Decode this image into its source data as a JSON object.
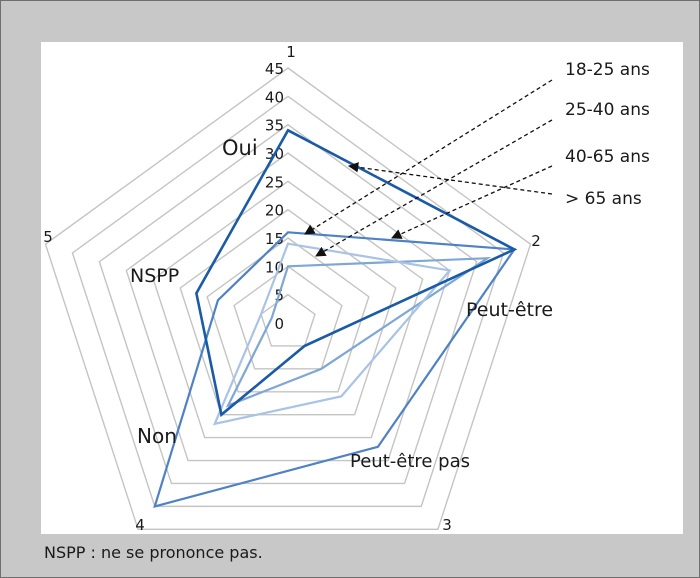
{
  "chart_data": {
    "type": "radar",
    "axes": [
      {
        "index": "1",
        "label": "Oui"
      },
      {
        "index": "2",
        "label": "Peut-être"
      },
      {
        "index": "3",
        "label": "Peut-être pas"
      },
      {
        "index": "4",
        "label": "Non"
      },
      {
        "index": "5",
        "label": "NSPP"
      }
    ],
    "rlim": [
      0,
      45
    ],
    "ticks": [
      0,
      5,
      10,
      15,
      20,
      25,
      30,
      35,
      40,
      45
    ],
    "grid": true,
    "series": [
      {
        "name": "18-25 ans",
        "values": [
          16,
          42,
          27,
          40,
          13
        ],
        "color": "#4f82c4"
      },
      {
        "name": "25-40 ans",
        "values": [
          10,
          37,
          10,
          18,
          3
        ],
        "color": "#7ea7d6"
      },
      {
        "name": "40-65 ans",
        "values": [
          14,
          30,
          16,
          22,
          5
        ],
        "color": "#a9c3e6"
      },
      {
        "name": "> 65 ans",
        "values": [
          34,
          42,
          5,
          20,
          17
        ],
        "color": "#1a5aa6"
      }
    ],
    "legend_position": "right"
  },
  "footnote": "NSPP : ne se prononce pas.",
  "colors": {
    "grid": "#c4c4c4",
    "background": "#c8c8c8",
    "plot_background": "#ffffff",
    "arrow": "#111111"
  }
}
